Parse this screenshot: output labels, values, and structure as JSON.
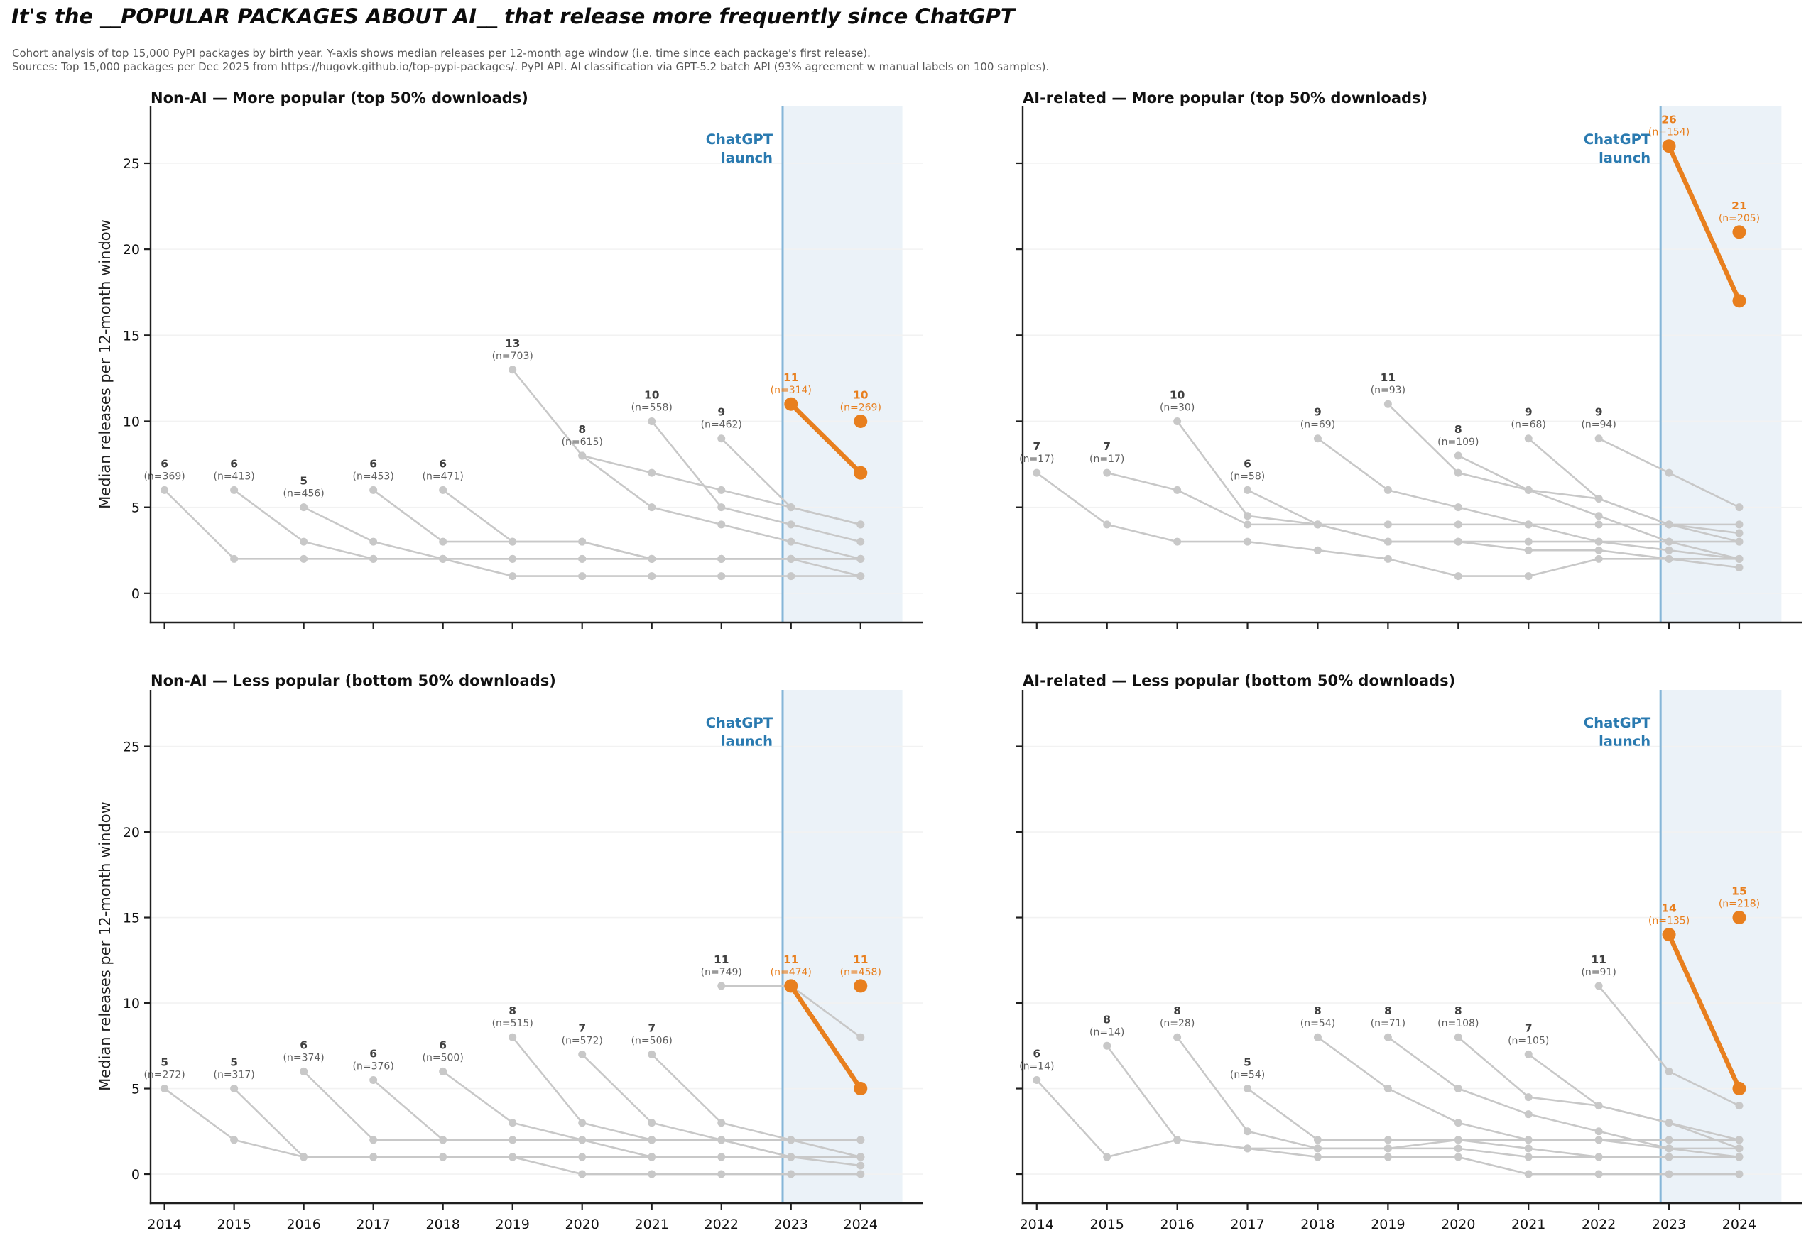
{
  "header": {
    "title": "It's the __POPULAR PACKAGES ABOUT AI__ that release more frequently since ChatGPT",
    "subtitle1": "Cohort analysis of top 15,000 PyPI packages by birth year. Y-axis shows median releases per 12-month age window (i.e. time since each package's first release).",
    "subtitle2": "Sources: Top 15,000 packages per Dec 2025 from https://hugovk.github.io/top-pypi-packages/. PyPI API. AI classification via GPT-5.2 batch API (93% agreement w manual labels on 100 samples)."
  },
  "colors": {
    "highlight_orange": "#e87f1e",
    "cohort_gray": "#c8c8c8",
    "label_gray_dark": "#404040",
    "label_gray_light": "#5f5f5f",
    "chatgpt_text_blue": "#2a7ab0",
    "chatgpt_line_blue": "#86b6d8",
    "shade_blue": "#ebf2f8",
    "grid": "#f2f2f2",
    "axis": "#1f1f1f"
  },
  "chart_data": [
    {
      "type": "line",
      "title": "Non-AI — More popular (top 50% downloads)",
      "ylabel": "Median releases per 12-month window",
      "xlim": [
        2013.8,
        2024.9
      ],
      "ylim": [
        -1.7,
        28.3
      ],
      "yticks": [
        0,
        5,
        10,
        15,
        20,
        25
      ],
      "xticks": [
        2014,
        2015,
        2016,
        2017,
        2018,
        2019,
        2020,
        2021,
        2022,
        2023,
        2024
      ],
      "show_ytick_labels": true,
      "show_xtick_labels": false,
      "grid": true,
      "annotation": {
        "line1": "ChatGPT",
        "line2": "launch"
      },
      "chatgpt_line_year": 2022.88,
      "shade_from": 2022.88,
      "shade_to": 2024.6,
      "cohorts": [
        {
          "birth_year": 2014,
          "label": "6",
          "n_label": "(n=369)",
          "n": 369,
          "highlight": false,
          "values": [
            6,
            2,
            2,
            2,
            2,
            1,
            1,
            1,
            1,
            1,
            1
          ]
        },
        {
          "birth_year": 2015,
          "label": "6",
          "n_label": "(n=413)",
          "n": 413,
          "highlight": false,
          "values": [
            6,
            3,
            2,
            2,
            2,
            2,
            2,
            2,
            2,
            2
          ]
        },
        {
          "birth_year": 2016,
          "label": "5",
          "n_label": "(n=456)",
          "n": 456,
          "highlight": false,
          "values": [
            5,
            3,
            2,
            2,
            2,
            2,
            2,
            2,
            2
          ]
        },
        {
          "birth_year": 2017,
          "label": "6",
          "n_label": "(n=453)",
          "n": 453,
          "highlight": false,
          "values": [
            6,
            3,
            3,
            3,
            2,
            2,
            2,
            2
          ]
        },
        {
          "birth_year": 2018,
          "label": "6",
          "n_label": "(n=471)",
          "n": 471,
          "highlight": false,
          "values": [
            6,
            3,
            3,
            2,
            2,
            2,
            1
          ]
        },
        {
          "birth_year": 2019,
          "label": "13",
          "n_label": "(n=703)",
          "n": 703,
          "highlight": false,
          "values": [
            13,
            8,
            7,
            6,
            5,
            4
          ]
        },
        {
          "birth_year": 2020,
          "label": "8",
          "n_label": "(n=615)",
          "n": 615,
          "highlight": false,
          "values": [
            8,
            5,
            4,
            3,
            2
          ]
        },
        {
          "birth_year": 2021,
          "label": "10",
          "n_label": "(n=558)",
          "n": 558,
          "highlight": false,
          "values": [
            10,
            5,
            4,
            3
          ]
        },
        {
          "birth_year": 2022,
          "label": "9",
          "n_label": "(n=462)",
          "n": 462,
          "highlight": false,
          "values": [
            9,
            5,
            4
          ]
        },
        {
          "birth_year": 2023,
          "label": "11",
          "n_label": "(n=314)",
          "n": 314,
          "highlight": true,
          "values": [
            11,
            7
          ]
        },
        {
          "birth_year": 2024,
          "label": "10",
          "n_label": "(n=269)",
          "n": 269,
          "highlight": true,
          "values": [
            10
          ]
        }
      ]
    },
    {
      "type": "line",
      "title": "AI-related — More popular (top 50% downloads)",
      "ylabel": "",
      "xlim": [
        2013.8,
        2024.9
      ],
      "ylim": [
        -1.7,
        28.3
      ],
      "yticks": [
        0,
        5,
        10,
        15,
        20,
        25
      ],
      "xticks": [
        2014,
        2015,
        2016,
        2017,
        2018,
        2019,
        2020,
        2021,
        2022,
        2023,
        2024
      ],
      "show_ytick_labels": false,
      "show_xtick_labels": false,
      "grid": true,
      "annotation": {
        "line1": "ChatGPT",
        "line2": "launch"
      },
      "chatgpt_line_year": 2022.88,
      "shade_from": 2022.88,
      "shade_to": 2024.6,
      "cohorts": [
        {
          "birth_year": 2014,
          "label": "7",
          "n_label": "(n=17)",
          "n": 17,
          "highlight": false,
          "values": [
            7,
            4,
            3,
            3,
            2.5,
            2,
            1,
            1,
            2,
            2,
            2
          ]
        },
        {
          "birth_year": 2015,
          "label": "7",
          "n_label": "(n=17)",
          "n": 17,
          "highlight": false,
          "values": [
            7,
            6,
            4,
            4,
            3,
            3,
            2.5,
            2.5,
            2,
            1.5
          ]
        },
        {
          "birth_year": 2016,
          "label": "10",
          "n_label": "(n=30)",
          "n": 30,
          "highlight": false,
          "values": [
            10,
            4.5,
            4,
            3,
            3,
            3,
            3,
            2.5,
            2
          ]
        },
        {
          "birth_year": 2017,
          "label": "6",
          "n_label": "(n=58)",
          "n": 58,
          "highlight": false,
          "values": [
            6,
            4,
            4,
            4,
            4,
            4,
            4,
            4
          ]
        },
        {
          "birth_year": 2018,
          "label": "9",
          "n_label": "(n=69)",
          "n": 69,
          "highlight": false,
          "values": [
            9,
            6,
            5,
            4,
            3,
            3,
            3
          ]
        },
        {
          "birth_year": 2019,
          "label": "11",
          "n_label": "(n=93)",
          "n": 93,
          "highlight": false,
          "values": [
            11,
            7,
            6,
            5.5,
            4,
            3.5
          ]
        },
        {
          "birth_year": 2020,
          "label": "8",
          "n_label": "(n=109)",
          "n": 109,
          "highlight": false,
          "values": [
            8,
            6,
            4.5,
            3,
            2
          ]
        },
        {
          "birth_year": 2021,
          "label": "9",
          "n_label": "(n=68)",
          "n": 68,
          "highlight": false,
          "values": [
            9,
            5.5,
            4,
            3
          ]
        },
        {
          "birth_year": 2022,
          "label": "9",
          "n_label": "(n=94)",
          "n": 94,
          "highlight": false,
          "values": [
            9,
            7,
            5
          ]
        },
        {
          "birth_year": 2023,
          "label": "26",
          "n_label": "(n=154)",
          "n": 154,
          "highlight": true,
          "values": [
            26,
            17
          ]
        },
        {
          "birth_year": 2024,
          "label": "21",
          "n_label": "(n=205)",
          "n": 205,
          "highlight": true,
          "values": [
            21
          ]
        }
      ]
    },
    {
      "type": "line",
      "title": "Non-AI — Less popular (bottom 50% downloads)",
      "ylabel": "Median releases per 12-month window",
      "xlim": [
        2013.8,
        2024.9
      ],
      "ylim": [
        -1.7,
        28.3
      ],
      "yticks": [
        0,
        5,
        10,
        15,
        20,
        25
      ],
      "xticks": [
        2014,
        2015,
        2016,
        2017,
        2018,
        2019,
        2020,
        2021,
        2022,
        2023,
        2024
      ],
      "show_ytick_labels": true,
      "show_xtick_labels": true,
      "grid": true,
      "annotation": {
        "line1": "ChatGPT",
        "line2": "launch"
      },
      "chatgpt_line_year": 2022.88,
      "shade_from": 2022.88,
      "shade_to": 2024.6,
      "cohorts": [
        {
          "birth_year": 2014,
          "label": "5",
          "n_label": "(n=272)",
          "n": 272,
          "highlight": false,
          "values": [
            5,
            2,
            1,
            1,
            1,
            1,
            0,
            0,
            0,
            0,
            0
          ]
        },
        {
          "birth_year": 2015,
          "label": "5",
          "n_label": "(n=317)",
          "n": 317,
          "highlight": false,
          "values": [
            5,
            1,
            1,
            1,
            1,
            1,
            1,
            1,
            1,
            1
          ]
        },
        {
          "birth_year": 2016,
          "label": "6",
          "n_label": "(n=374)",
          "n": 374,
          "highlight": false,
          "values": [
            6,
            2,
            2,
            2,
            2,
            2,
            2,
            2,
            2
          ]
        },
        {
          "birth_year": 2017,
          "label": "6",
          "n_label": "(n=376)",
          "n": 376,
          "highlight": false,
          "values": [
            5.5,
            2,
            2,
            2,
            2,
            2,
            2,
            2
          ]
        },
        {
          "birth_year": 2018,
          "label": "6",
          "n_label": "(n=500)",
          "n": 500,
          "highlight": false,
          "values": [
            6,
            3,
            2,
            1,
            1,
            1,
            1
          ]
        },
        {
          "birth_year": 2019,
          "label": "8",
          "n_label": "(n=515)",
          "n": 515,
          "highlight": false,
          "values": [
            8,
            3,
            2,
            2,
            1,
            1
          ]
        },
        {
          "birth_year": 2020,
          "label": "7",
          "n_label": "(n=572)",
          "n": 572,
          "highlight": false,
          "values": [
            7,
            3,
            2,
            1,
            0.5
          ]
        },
        {
          "birth_year": 2021,
          "label": "7",
          "n_label": "(n=506)",
          "n": 506,
          "highlight": false,
          "values": [
            7,
            3,
            2,
            1
          ]
        },
        {
          "birth_year": 2022,
          "label": "11",
          "n_label": "(n=749)",
          "n": 749,
          "highlight": false,
          "values": [
            11,
            11,
            8
          ]
        },
        {
          "birth_year": 2023,
          "label": "11",
          "n_label": "(n=474)",
          "n": 474,
          "highlight": true,
          "values": [
            11,
            5
          ]
        },
        {
          "birth_year": 2024,
          "label": "11",
          "n_label": "(n=458)",
          "n": 458,
          "highlight": true,
          "values": [
            11
          ]
        }
      ]
    },
    {
      "type": "line",
      "title": "AI-related — Less popular (bottom 50% downloads)",
      "ylabel": "",
      "xlim": [
        2013.8,
        2024.9
      ],
      "ylim": [
        -1.7,
        28.3
      ],
      "yticks": [
        0,
        5,
        10,
        15,
        20,
        25
      ],
      "xticks": [
        2014,
        2015,
        2016,
        2017,
        2018,
        2019,
        2020,
        2021,
        2022,
        2023,
        2024
      ],
      "show_ytick_labels": false,
      "show_xtick_labels": true,
      "grid": true,
      "annotation": {
        "line1": "ChatGPT",
        "line2": "launch"
      },
      "chatgpt_line_year": 2022.88,
      "shade_from": 2022.88,
      "shade_to": 2024.6,
      "cohorts": [
        {
          "birth_year": 2014,
          "label": "6",
          "n_label": "(n=14)",
          "n": 14,
          "highlight": false,
          "values": [
            5.5,
            1,
            2,
            1.5,
            1.5,
            1.5,
            1.5,
            1,
            1,
            1,
            1
          ]
        },
        {
          "birth_year": 2015,
          "label": "8",
          "n_label": "(n=14)",
          "n": 14,
          "highlight": false,
          "values": [
            7.5,
            2,
            1.5,
            1,
            1,
            1,
            0,
            0,
            0,
            0
          ]
        },
        {
          "birth_year": 2016,
          "label": "8",
          "n_label": "(n=28)",
          "n": 28,
          "highlight": false,
          "values": [
            8,
            2.5,
            1.5,
            1.5,
            2,
            1.5,
            1,
            1,
            1
          ]
        },
        {
          "birth_year": 2017,
          "label": "5",
          "n_label": "(n=54)",
          "n": 54,
          "highlight": false,
          "values": [
            5,
            2,
            2,
            2,
            2,
            2,
            2,
            2
          ]
        },
        {
          "birth_year": 2018,
          "label": "8",
          "n_label": "(n=54)",
          "n": 54,
          "highlight": false,
          "values": [
            8,
            5,
            3,
            2,
            2,
            1.5,
            1.5
          ]
        },
        {
          "birth_year": 2019,
          "label": "8",
          "n_label": "(n=71)",
          "n": 71,
          "highlight": false,
          "values": [
            8,
            5,
            3.5,
            2.5,
            1.5,
            1
          ]
        },
        {
          "birth_year": 2020,
          "label": "8",
          "n_label": "(n=108)",
          "n": 108,
          "highlight": false,
          "values": [
            8,
            4.5,
            4,
            3,
            2
          ]
        },
        {
          "birth_year": 2021,
          "label": "7",
          "n_label": "(n=105)",
          "n": 105,
          "highlight": false,
          "values": [
            7,
            4,
            3,
            1.5
          ]
        },
        {
          "birth_year": 2022,
          "label": "11",
          "n_label": "(n=91)",
          "n": 91,
          "highlight": false,
          "values": [
            11,
            6,
            4
          ]
        },
        {
          "birth_year": 2023,
          "label": "14",
          "n_label": "(n=135)",
          "n": 135,
          "highlight": true,
          "values": [
            14,
            5
          ]
        },
        {
          "birth_year": 2024,
          "label": "15",
          "n_label": "(n=218)",
          "n": 218,
          "highlight": true,
          "values": [
            15
          ]
        }
      ]
    }
  ]
}
